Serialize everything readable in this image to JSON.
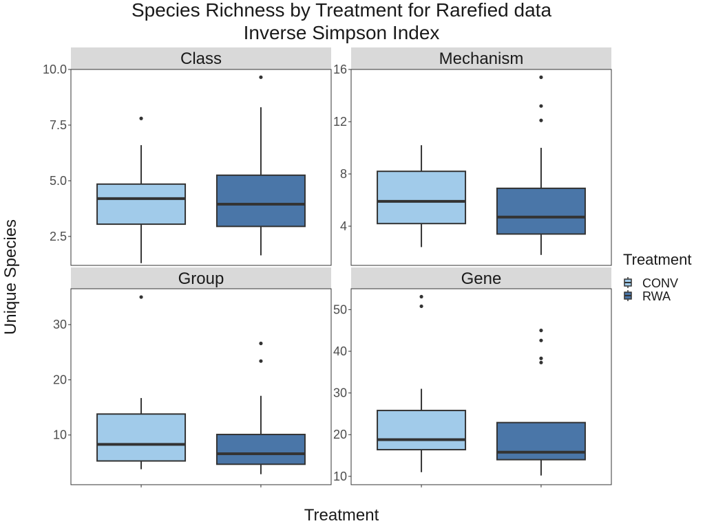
{
  "chart_data": {
    "type": "box",
    "title": "Species Richness by Treatment for Rarefied data",
    "subtitle": "Inverse Simpson Index",
    "xlabel": "Treatment",
    "ylabel": "Unique Species",
    "legend": {
      "title": "Treatment",
      "placement": "right",
      "entries": [
        {
          "name": "CONV",
          "color": "#a1cbea"
        },
        {
          "name": "RWA",
          "color": "#4a76a8"
        }
      ]
    },
    "categories": [
      "CONV",
      "RWA"
    ],
    "x_tick_labels_shown": false,
    "grid": false,
    "panels": [
      {
        "name": "Class",
        "ylim": [
          1.2,
          10.0
        ],
        "yticks": [
          2.5,
          5.0,
          7.5,
          10.0
        ],
        "ytick_labels": [
          "2.5",
          "5.0",
          "7.5",
          "10.0"
        ],
        "boxes": [
          {
            "group": "CONV",
            "whisker_low": 1.3,
            "q1": 3.05,
            "median": 4.2,
            "q3": 4.85,
            "whisker_high": 6.6,
            "outliers": [
              7.8
            ]
          },
          {
            "group": "RWA",
            "whisker_low": 1.65,
            "q1": 2.95,
            "median": 3.95,
            "q3": 5.25,
            "whisker_high": 8.3,
            "outliers": [
              9.65
            ]
          }
        ]
      },
      {
        "name": "Mechanism",
        "ylim": [
          1.0,
          16.0
        ],
        "yticks": [
          4,
          8,
          12,
          16
        ],
        "ytick_labels": [
          "4",
          "8",
          "12",
          "16"
        ],
        "boxes": [
          {
            "group": "CONV",
            "whisker_low": 2.4,
            "q1": 4.2,
            "median": 5.9,
            "q3": 8.2,
            "whisker_high": 10.2,
            "outliers": []
          },
          {
            "group": "RWA",
            "whisker_low": 1.8,
            "q1": 3.4,
            "median": 4.7,
            "q3": 6.9,
            "whisker_high": 10.0,
            "outliers": [
              12.1,
              13.2,
              15.4
            ]
          }
        ]
      },
      {
        "name": "Group",
        "ylim": [
          1.0,
          36.5
        ],
        "yticks": [
          10,
          20,
          30
        ],
        "ytick_labels": [
          "10",
          "20",
          "30"
        ],
        "boxes": [
          {
            "group": "CONV",
            "whisker_low": 3.8,
            "q1": 5.3,
            "median": 8.3,
            "q3": 13.8,
            "whisker_high": 16.7,
            "outliers": [
              35.0
            ]
          },
          {
            "group": "RWA",
            "whisker_low": 2.9,
            "q1": 4.7,
            "median": 6.6,
            "q3": 10.1,
            "whisker_high": 17.1,
            "outliers": [
              23.4,
              26.6
            ]
          }
        ]
      },
      {
        "name": "Gene",
        "ylim": [
          8.0,
          55.0
        ],
        "yticks": [
          10,
          20,
          30,
          40,
          50
        ],
        "ytick_labels": [
          "10",
          "20",
          "30",
          "40",
          "50"
        ],
        "boxes": [
          {
            "group": "CONV",
            "whisker_low": 11.0,
            "q1": 16.4,
            "median": 18.8,
            "q3": 25.8,
            "whisker_high": 31.0,
            "outliers": [
              50.8,
              53.1
            ]
          },
          {
            "group": "RWA",
            "whisker_low": 10.2,
            "q1": 14.0,
            "median": 15.8,
            "q3": 22.9,
            "whisker_high": 22.9,
            "outliers": [
              37.3,
              38.3,
              42.6,
              45.0
            ]
          }
        ]
      }
    ]
  }
}
